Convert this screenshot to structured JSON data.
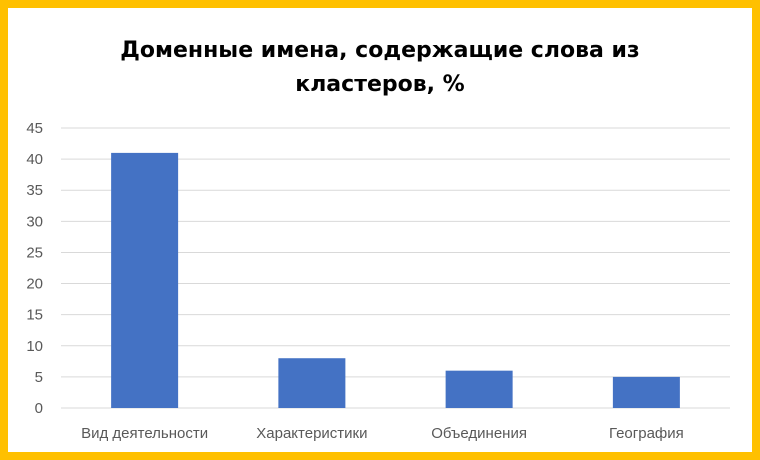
{
  "chart_data": {
    "type": "bar",
    "title_lines": [
      "Доменные имена, содержащие слова из",
      "кластеров, %"
    ],
    "categories": [
      "Вид деятельности",
      "Характеристики",
      "Объединения",
      "География"
    ],
    "values": [
      41,
      8,
      6,
      5
    ],
    "ylim": [
      0,
      45
    ],
    "yticks": [
      "0",
      "5",
      "10",
      "15",
      "20",
      "25",
      "30",
      "35",
      "40",
      "45"
    ],
    "grid": true,
    "legend": "none",
    "colors": {
      "bar": "#4472C4",
      "grid": "#D9D9D9",
      "axis_text": "#595959",
      "border": "#FFC000"
    }
  }
}
